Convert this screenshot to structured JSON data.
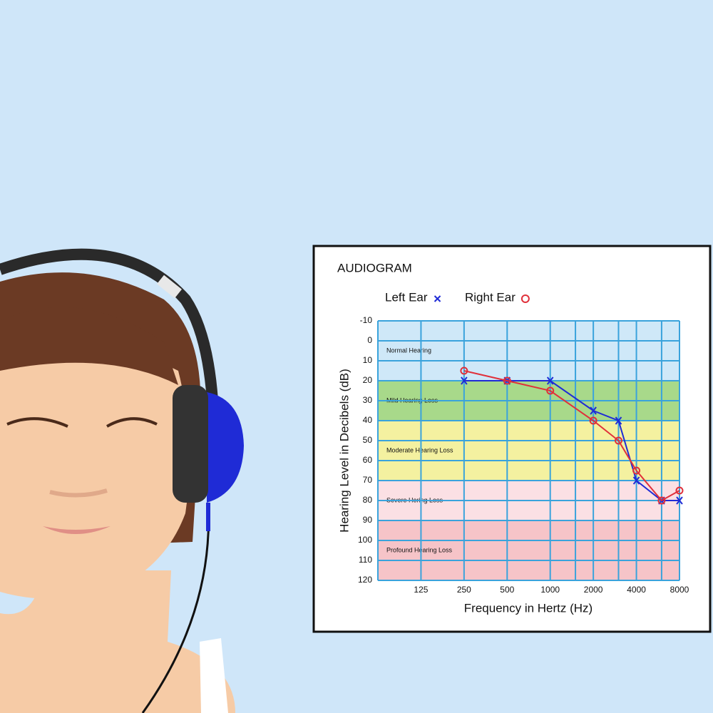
{
  "chart_data": {
    "type": "line",
    "title": "AUDIOGRAM",
    "x_label": "Frequency in Hertz (Hz)",
    "y_label": "Hearing Level in Decibels (dB)",
    "x": [
      250,
      500,
      1000,
      2000,
      3000,
      4000,
      6000,
      8000
    ],
    "series": [
      {
        "name": "Left Ear",
        "marker": "x",
        "color": "#1f2bd6",
        "values": [
          20,
          20,
          20,
          35,
          40,
          70,
          80,
          80
        ]
      },
      {
        "name": "Right Ear",
        "marker": "o",
        "color": "#e0303a",
        "values": [
          15,
          20,
          25,
          40,
          50,
          65,
          80,
          75
        ]
      }
    ],
    "xscale": "log",
    "xlim": [
      62.5,
      8000
    ],
    "xticks": [
      125,
      250,
      500,
      1000,
      2000,
      4000,
      8000
    ],
    "x_minor_ticks": [
      1500,
      3000,
      6000
    ],
    "ylim": [
      -10,
      120
    ],
    "y_inverted": true,
    "yticks": [
      -10,
      0,
      10,
      20,
      30,
      40,
      50,
      60,
      70,
      80,
      90,
      100,
      110,
      120
    ],
    "grid": true,
    "grid_color": "#3aa3dc",
    "bands": [
      {
        "label": "Normal Hearing",
        "from": -10,
        "to": 20,
        "color": "#cfe8f8"
      },
      {
        "label": "Mild Hearing Loss",
        "from": 20,
        "to": 40,
        "color": "#a8d98a"
      },
      {
        "label": "Moderate Hearing Loss",
        "from": 40,
        "to": 70,
        "color": "#f4f1a0"
      },
      {
        "label": "Severe Hering Loss",
        "from": 70,
        "to": 90,
        "color": "#fbe0e4"
      },
      {
        "label": "Profound Hearing Loss",
        "from": 90,
        "to": 120,
        "color": "#f6c4c8"
      }
    ]
  }
}
